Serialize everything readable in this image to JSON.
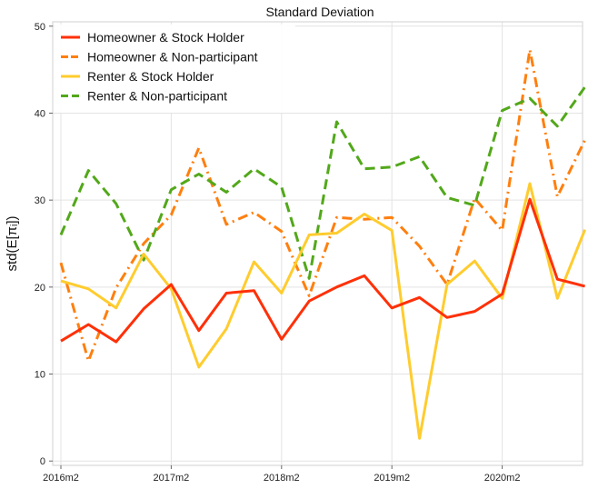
{
  "chart_data": {
    "type": "line",
    "title": "Standard Deviation",
    "xlabel": "",
    "ylabel": "std(E[πᵢ])",
    "x": [
      "2016m2",
      "2016m5",
      "2016m8",
      "2016m11",
      "2017m2",
      "2017m5",
      "2017m8",
      "2017m11",
      "2018m2",
      "2018m5",
      "2018m8",
      "2018m11",
      "2019m2",
      "2019m5",
      "2019m8",
      "2019m11",
      "2020m2",
      "2020m5",
      "2020m8",
      "2020m11"
    ],
    "x_ticks": [
      "2016m2",
      "2017m2",
      "2018m2",
      "2019m2",
      "2020m2"
    ],
    "y_ticks": [
      0,
      10,
      20,
      30,
      40,
      50
    ],
    "ylim": [
      -0.5,
      50.5
    ],
    "grid": true,
    "legend_position": "top-left",
    "series": [
      {
        "name": "Homeowner & Stock Holder",
        "color": "#ff3008",
        "style": "solid",
        "values": [
          13.8,
          15.7,
          13.7,
          17.5,
          20.3,
          15.0,
          19.3,
          19.6,
          14.0,
          18.4,
          20.0,
          21.3,
          17.6,
          18.8,
          16.5,
          17.2,
          19.2,
          30.1,
          20.9,
          20.1
        ]
      },
      {
        "name": "Homeowner & Non-participant",
        "color": "#ff7f0e",
        "style": "dashdot",
        "values": [
          22.8,
          11.5,
          19.9,
          25.0,
          28.3,
          36.0,
          27.2,
          28.6,
          26.4,
          19.0,
          28.0,
          27.8,
          28.0,
          24.7,
          20.3,
          30.2,
          26.5,
          47.3,
          30.4,
          36.9
        ]
      },
      {
        "name": "Renter & Stock Holder",
        "color": "#ffcc2e",
        "style": "solid",
        "values": [
          20.7,
          19.8,
          17.6,
          23.8,
          19.8,
          10.8,
          15.2,
          22.9,
          19.3,
          26.0,
          26.2,
          28.4,
          26.5,
          2.6,
          20.3,
          23.0,
          18.7,
          31.9,
          18.7,
          26.6
        ]
      },
      {
        "name": "Renter & Non-participant",
        "color": "#52a81a",
        "style": "dashed",
        "values": [
          26.0,
          33.4,
          29.6,
          23.1,
          31.2,
          33.0,
          30.9,
          33.6,
          31.5,
          21.0,
          39.0,
          33.6,
          33.8,
          35.0,
          30.3,
          29.4,
          40.3,
          41.7,
          38.5,
          43.0
        ]
      }
    ]
  }
}
